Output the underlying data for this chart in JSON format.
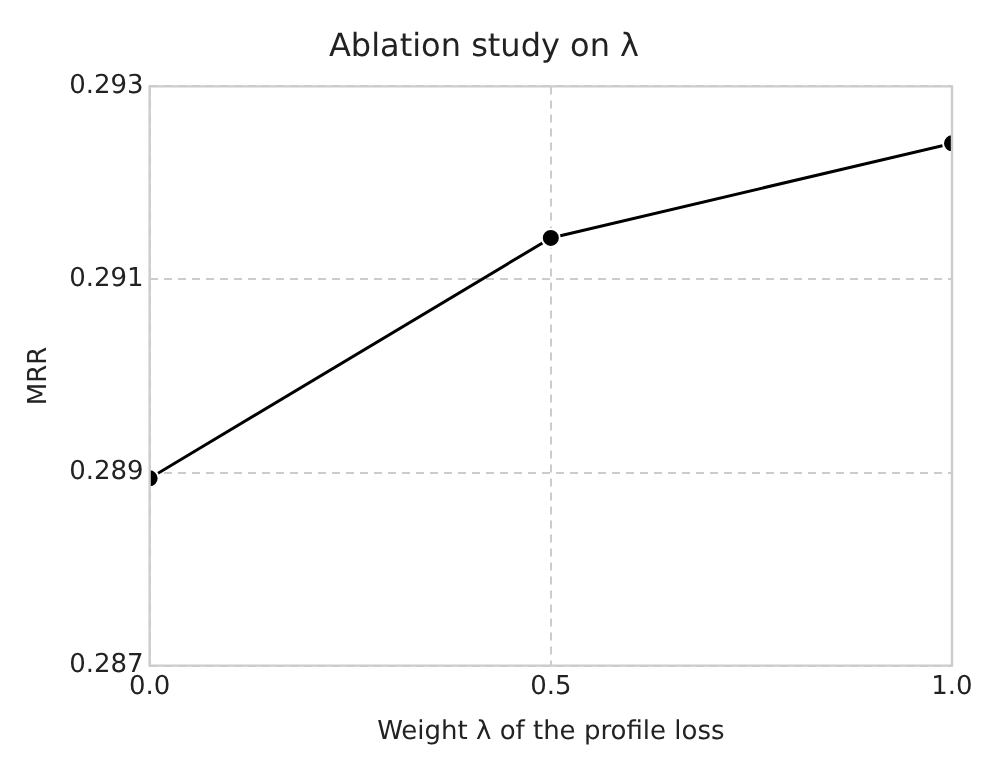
{
  "chart_data": {
    "type": "line",
    "title": "Ablation study on λ",
    "xlabel": "Weight λ of the profile loss",
    "ylabel": "MRR",
    "x": [
      0,
      0.5,
      1.0
    ],
    "series": [
      {
        "color": "#000000",
        "values": [
          0.28894,
          0.29143,
          0.29241
        ]
      }
    ],
    "xlim": [
      0,
      1
    ],
    "xticks": [
      {
        "value": 0,
        "label": "0.0"
      },
      {
        "value": 0.5,
        "label": "0.5"
      },
      {
        "value": 1,
        "label": "1.0"
      }
    ],
    "ylim": [
      0.287,
      0.293
    ],
    "yticks": [
      0.287,
      0.289,
      0.291,
      0.293
    ],
    "grid": true,
    "legend": false,
    "marker": "circle",
    "line_style": "solid"
  }
}
